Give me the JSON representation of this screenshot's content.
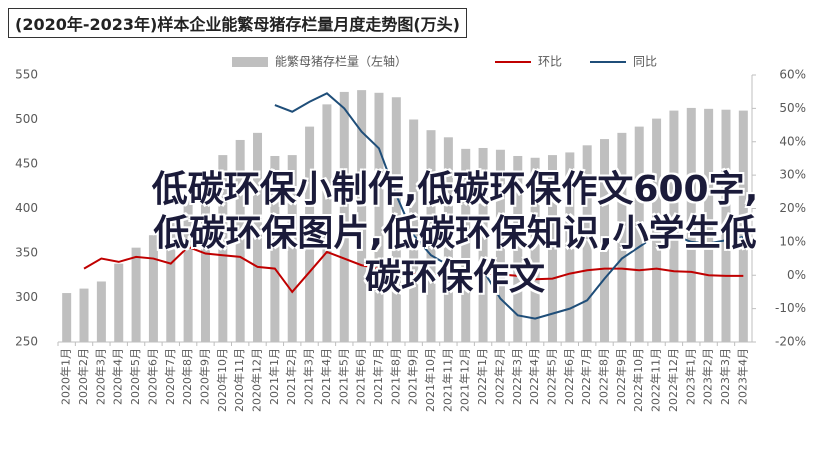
{
  "chart_data": {
    "type": "bar-line",
    "title": "(2020年-2023年)样本企业能繁母猪存栏量月度走势图(万头)",
    "overlay_text": "低碳环保小制作,低碳环保作文600字,低碳环保图片,低碳环保知识,小学生低碳环保作文",
    "categories": [
      "2020年1月",
      "2020年2月",
      "2020年3月",
      "2020年4月",
      "2020年5月",
      "2020年6月",
      "2020年7月",
      "2020年8月",
      "2020年9月",
      "2020年10月",
      "2020年11月",
      "2020年12月",
      "2021年1月",
      "2021年2月",
      "2021年3月",
      "2021年4月",
      "2021年5月",
      "2021年6月",
      "2021年7月",
      "2021年8月",
      "2021年9月",
      "2021年10月",
      "2021年11月",
      "2021年12月",
      "2022年1月",
      "2022年2月",
      "2022年3月",
      "2022年4月",
      "2022年5月",
      "2022年6月",
      "2022年7月",
      "2022年8月",
      "2022年9月",
      "2022年10月",
      "2022年11月",
      "2022年12月",
      "2023年1月",
      "2023年2月",
      "2023年3月",
      "2023年4月"
    ],
    "series": [
      {
        "name": "能繁母猪存栏量（左轴）",
        "color": "#bfbfbf",
        "kind": "bar",
        "axis": "y",
        "values": [
          305,
          310,
          318,
          338,
          356,
          370,
          387,
          410,
          438,
          460,
          477,
          485,
          459,
          460,
          492,
          517,
          531,
          533,
          530,
          525,
          500,
          488,
          480,
          467,
          468,
          466,
          459,
          457,
          460,
          463,
          471,
          478,
          485,
          492,
          501,
          510,
          513,
          512,
          511,
          510
        ]
      },
      {
        "name": "环比",
        "color": "#c00000",
        "kind": "line",
        "axis": "y2",
        "values": [
          null,
          2,
          5,
          4,
          5.5,
          5,
          3.5,
          8.5,
          6.5,
          6,
          5.5,
          2.5,
          2,
          -5,
          1,
          7,
          5,
          3,
          2,
          1,
          0.5,
          0.2,
          -0.5,
          -1,
          0.5,
          0.3,
          -0.2,
          -1.2,
          -1,
          0.5,
          1.5,
          2,
          2,
          1.5,
          2,
          1.2,
          1,
          0,
          -0.2,
          -0.2
        ]
      },
      {
        "name": "同比",
        "color": "#1f4e79",
        "kind": "line",
        "axis": "y2",
        "values": [
          null,
          null,
          null,
          null,
          null,
          null,
          null,
          null,
          null,
          null,
          null,
          null,
          51,
          49,
          52,
          54.5,
          50,
          43,
          38,
          24,
          12,
          6,
          3,
          1,
          1.5,
          -7,
          -12,
          -13,
          -11.5,
          -10,
          -7.5,
          -1,
          5,
          8.5,
          12,
          12,
          10,
          9.5,
          10.5,
          11.5
        ]
      }
    ],
    "ylim": [
      250,
      550
    ],
    "yticks": [
      250,
      300,
      350,
      400,
      450,
      500,
      550
    ],
    "y2lim": [
      -20,
      60
    ],
    "y2ticks": [
      {
        "value": -20,
        "label": "-20%"
      },
      {
        "value": -10,
        "label": "-10%"
      },
      {
        "value": 0,
        "label": "0%"
      },
      {
        "value": 10,
        "label": "10%"
      },
      {
        "value": 20,
        "label": "20%"
      },
      {
        "value": 30,
        "label": "30%"
      },
      {
        "value": 40,
        "label": "40%"
      },
      {
        "value": 50,
        "label": "50%"
      },
      {
        "value": 60,
        "label": "60%"
      }
    ]
  }
}
